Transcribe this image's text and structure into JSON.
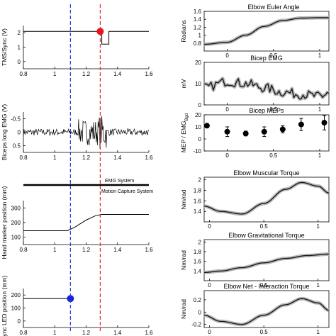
{
  "left_panels": [
    {
      "id": "tms-sync",
      "ylabel": "TMS/Sync (V)",
      "yticks": [
        "0",
        "1",
        "2"
      ],
      "xticks": [
        "0.8",
        "1",
        "1.2",
        "1.4",
        "1.6"
      ],
      "xlim": [
        0.8,
        1.6
      ],
      "ylim": [
        0,
        2.2
      ],
      "trace": [
        [
          0.8,
          1.9
        ],
        [
          1.3,
          1.9
        ],
        [
          1.3,
          1.25
        ],
        [
          1.345,
          1.25
        ],
        [
          1.345,
          1.9
        ],
        [
          1.6,
          1.9
        ]
      ],
      "marker": {
        "x": 1.29,
        "y": 1.9,
        "color": "#e8141a"
      }
    },
    {
      "id": "biceps-emg",
      "ylabel": "Biceps long EMG (V)",
      "yticks": [
        "0.5",
        "0",
        "-0.5"
      ],
      "xticks": [
        "0.8",
        "1",
        "1.2",
        "1.4",
        "1.6"
      ],
      "xlim": [
        0.8,
        1.6
      ],
      "ylim": [
        -0.7,
        0.7
      ]
    },
    {
      "id": "hand-marker",
      "ylabel": "Hand marker position (mm)",
      "yticks": [
        "100",
        "200",
        "300"
      ],
      "xticks": [
        "0.8",
        "1",
        "1.2",
        "1.4",
        "1.6"
      ],
      "xlim": [
        0.8,
        1.6
      ],
      "ylim": [
        0,
        350
      ],
      "trace": [
        [
          0.8,
          110
        ],
        [
          1.08,
          110
        ],
        [
          1.13,
          140
        ],
        [
          1.2,
          195
        ],
        [
          1.26,
          230
        ],
        [
          1.3,
          240
        ],
        [
          1.6,
          240
        ]
      ]
    },
    {
      "id": "sync-led",
      "ylabel": "Sync LED position (mm)",
      "yticks": [
        "0",
        "100",
        "200"
      ],
      "xticks": [
        "0.8",
        "1",
        "1.2",
        "1.4",
        "1.6"
      ],
      "xlim": [
        0.8,
        1.6
      ],
      "ylim": [
        -30,
        240
      ],
      "trace": [
        [
          0.8,
          170
        ],
        [
          1.1,
          170
        ]
      ],
      "marker": {
        "x": 1.1,
        "y": 170,
        "color": "#1424e0"
      }
    }
  ],
  "system_bar": {
    "top_label": "EMG System",
    "bottom_label": "Motion Capture System"
  },
  "markers": {
    "blue_line_x": 1.1,
    "red_line_x": 1.29,
    "blue": "#2a3bd8",
    "red": "#e0262c"
  },
  "chart_data": [
    {
      "type": "line",
      "title": "Elbow Euler Angle",
      "ylabel": "Radians",
      "xlim": [
        -0.25,
        1.1
      ],
      "ylim": [
        0.6,
        1.6
      ],
      "xticks": [
        "0",
        "0.5",
        "1"
      ],
      "yticks": [
        "0.8",
        "1",
        "1.2",
        "1.4",
        "1.6"
      ],
      "x": [
        -0.25,
        0.0,
        0.2,
        0.4,
        0.6,
        0.8,
        1.0,
        1.1
      ],
      "values": [
        0.77,
        0.82,
        1.0,
        1.22,
        1.37,
        1.43,
        1.44,
        1.44
      ]
    },
    {
      "type": "line",
      "title": "Bicep EMG",
      "ylabel": "mV",
      "xlim": [
        -0.25,
        1.1
      ],
      "ylim": [
        0,
        20
      ],
      "xticks": [
        "0",
        "0.5",
        "1"
      ],
      "yticks": [
        "0",
        "10",
        "20"
      ],
      "x": [
        -0.25,
        0.0,
        0.2,
        0.4,
        0.6,
        0.8,
        1.0,
        1.1
      ],
      "values": [
        8,
        11,
        10,
        8,
        6,
        5,
        4,
        5
      ]
    },
    {
      "type": "scatter",
      "title": "Bicep MEPs",
      "ylabel": "MEP / EMG",
      "ylabel_sub": "Bgd",
      "xlim": [
        -0.25,
        1.1
      ],
      "ylim": [
        -10,
        20
      ],
      "xticks": [
        "0",
        "0.5",
        "1"
      ],
      "yticks": [
        "-10",
        "0",
        "10",
        "20"
      ],
      "x": [
        -0.22,
        0.0,
        0.2,
        0.4,
        0.6,
        0.8,
        1.05
      ],
      "values": [
        11,
        6,
        4.5,
        6,
        8,
        12,
        13.5
      ],
      "errors": [
        0,
        4,
        2,
        4,
        3,
        5,
        6
      ]
    },
    {
      "type": "line",
      "title": "Elbow Muscular Torque",
      "ylabel": "Nm/rad",
      "xlim": [
        -0.05,
        1.1
      ],
      "ylim": [
        1.2,
        2.05
      ],
      "xticks": [
        "0",
        "0.5",
        "1"
      ],
      "yticks": [
        "1.4",
        "1.6",
        "1.8",
        "2"
      ],
      "x": [
        -0.05,
        0.1,
        0.3,
        0.5,
        0.7,
        0.85,
        1.0,
        1.1
      ],
      "values": [
        1.5,
        1.4,
        1.35,
        1.55,
        1.82,
        1.95,
        1.88,
        1.75
      ]
    },
    {
      "type": "line",
      "title": "Elbow Gravitational Torque",
      "ylabel": "Nm/rad",
      "xlim": [
        -0.05,
        1.1
      ],
      "ylim": [
        1.2,
        2.05
      ],
      "xticks": [
        "0",
        "0.5",
        "1"
      ],
      "yticks": [
        "1.4",
        "1.6",
        "1.8",
        "2"
      ],
      "x": [
        -0.05,
        0.1,
        0.3,
        0.5,
        0.7,
        0.9,
        1.1
      ],
      "values": [
        1.37,
        1.4,
        1.47,
        1.57,
        1.66,
        1.72,
        1.75
      ]
    },
    {
      "type": "line",
      "title": "Elbow Net - Interaction Torque",
      "ylabel": "Nm/rad",
      "xlim": [
        -0.05,
        1.1
      ],
      "ylim": [
        -0.25,
        0.35
      ],
      "xticks": [
        "0",
        "0.5",
        "1"
      ],
      "yticks": [
        "-0.2",
        "0",
        "0.2"
      ],
      "x": [
        -0.05,
        0.1,
        0.3,
        0.5,
        0.7,
        0.85,
        1.0,
        1.1
      ],
      "values": [
        -0.05,
        -0.15,
        -0.2,
        -0.05,
        0.12,
        0.22,
        0.15,
        0.03
      ]
    }
  ]
}
